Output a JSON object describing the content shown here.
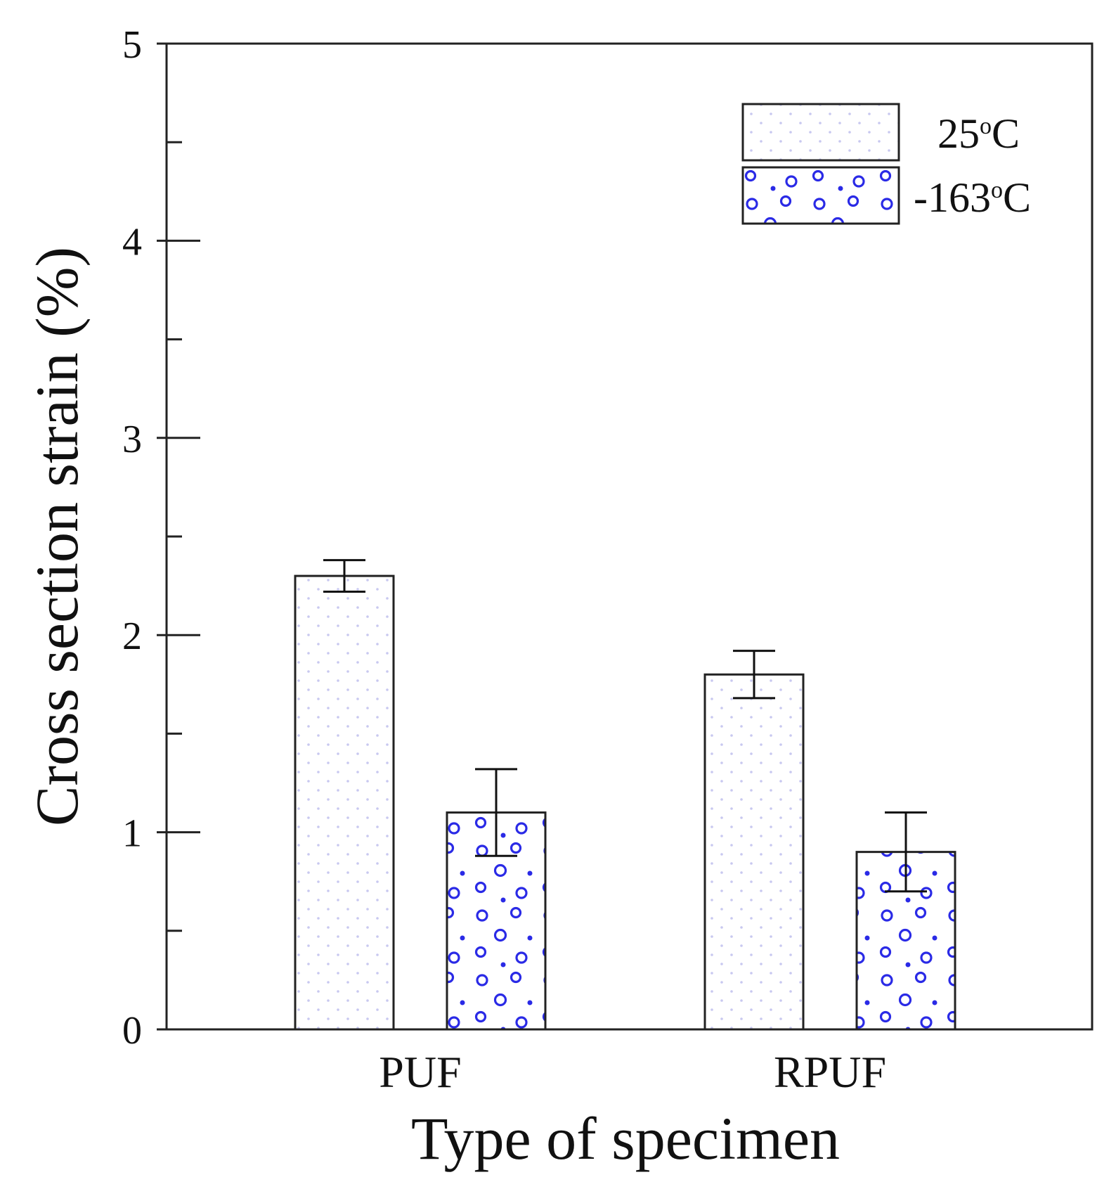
{
  "chart_data": {
    "type": "bar",
    "title": "",
    "xlabel": "Type of specimen",
    "ylabel": "Cross section strain (%)",
    "ylim": [
      0,
      5
    ],
    "y_ticks": [
      0,
      1,
      2,
      3,
      4,
      5
    ],
    "y_minor_ticks": [
      0.5,
      1.5,
      2.5,
      3.5,
      4.5
    ],
    "categories": [
      "PUF",
      "RPUF"
    ],
    "series": [
      {
        "name": "25°C",
        "legend_base": "25",
        "legend_sup": "o",
        "legend_unit": "C",
        "values": [
          2.3,
          1.8
        ],
        "errors": [
          0.08,
          0.12
        ],
        "pattern": "dots",
        "color": "#c8c8f0"
      },
      {
        "name": "-163°C",
        "legend_base": "-163",
        "legend_sup": "o",
        "legend_unit": "C",
        "values": [
          1.1,
          0.9
        ],
        "errors": [
          0.22,
          0.2
        ],
        "pattern": "circles",
        "color": "#2a2ae6"
      }
    ],
    "legend_position": "top-right",
    "grid": false
  }
}
